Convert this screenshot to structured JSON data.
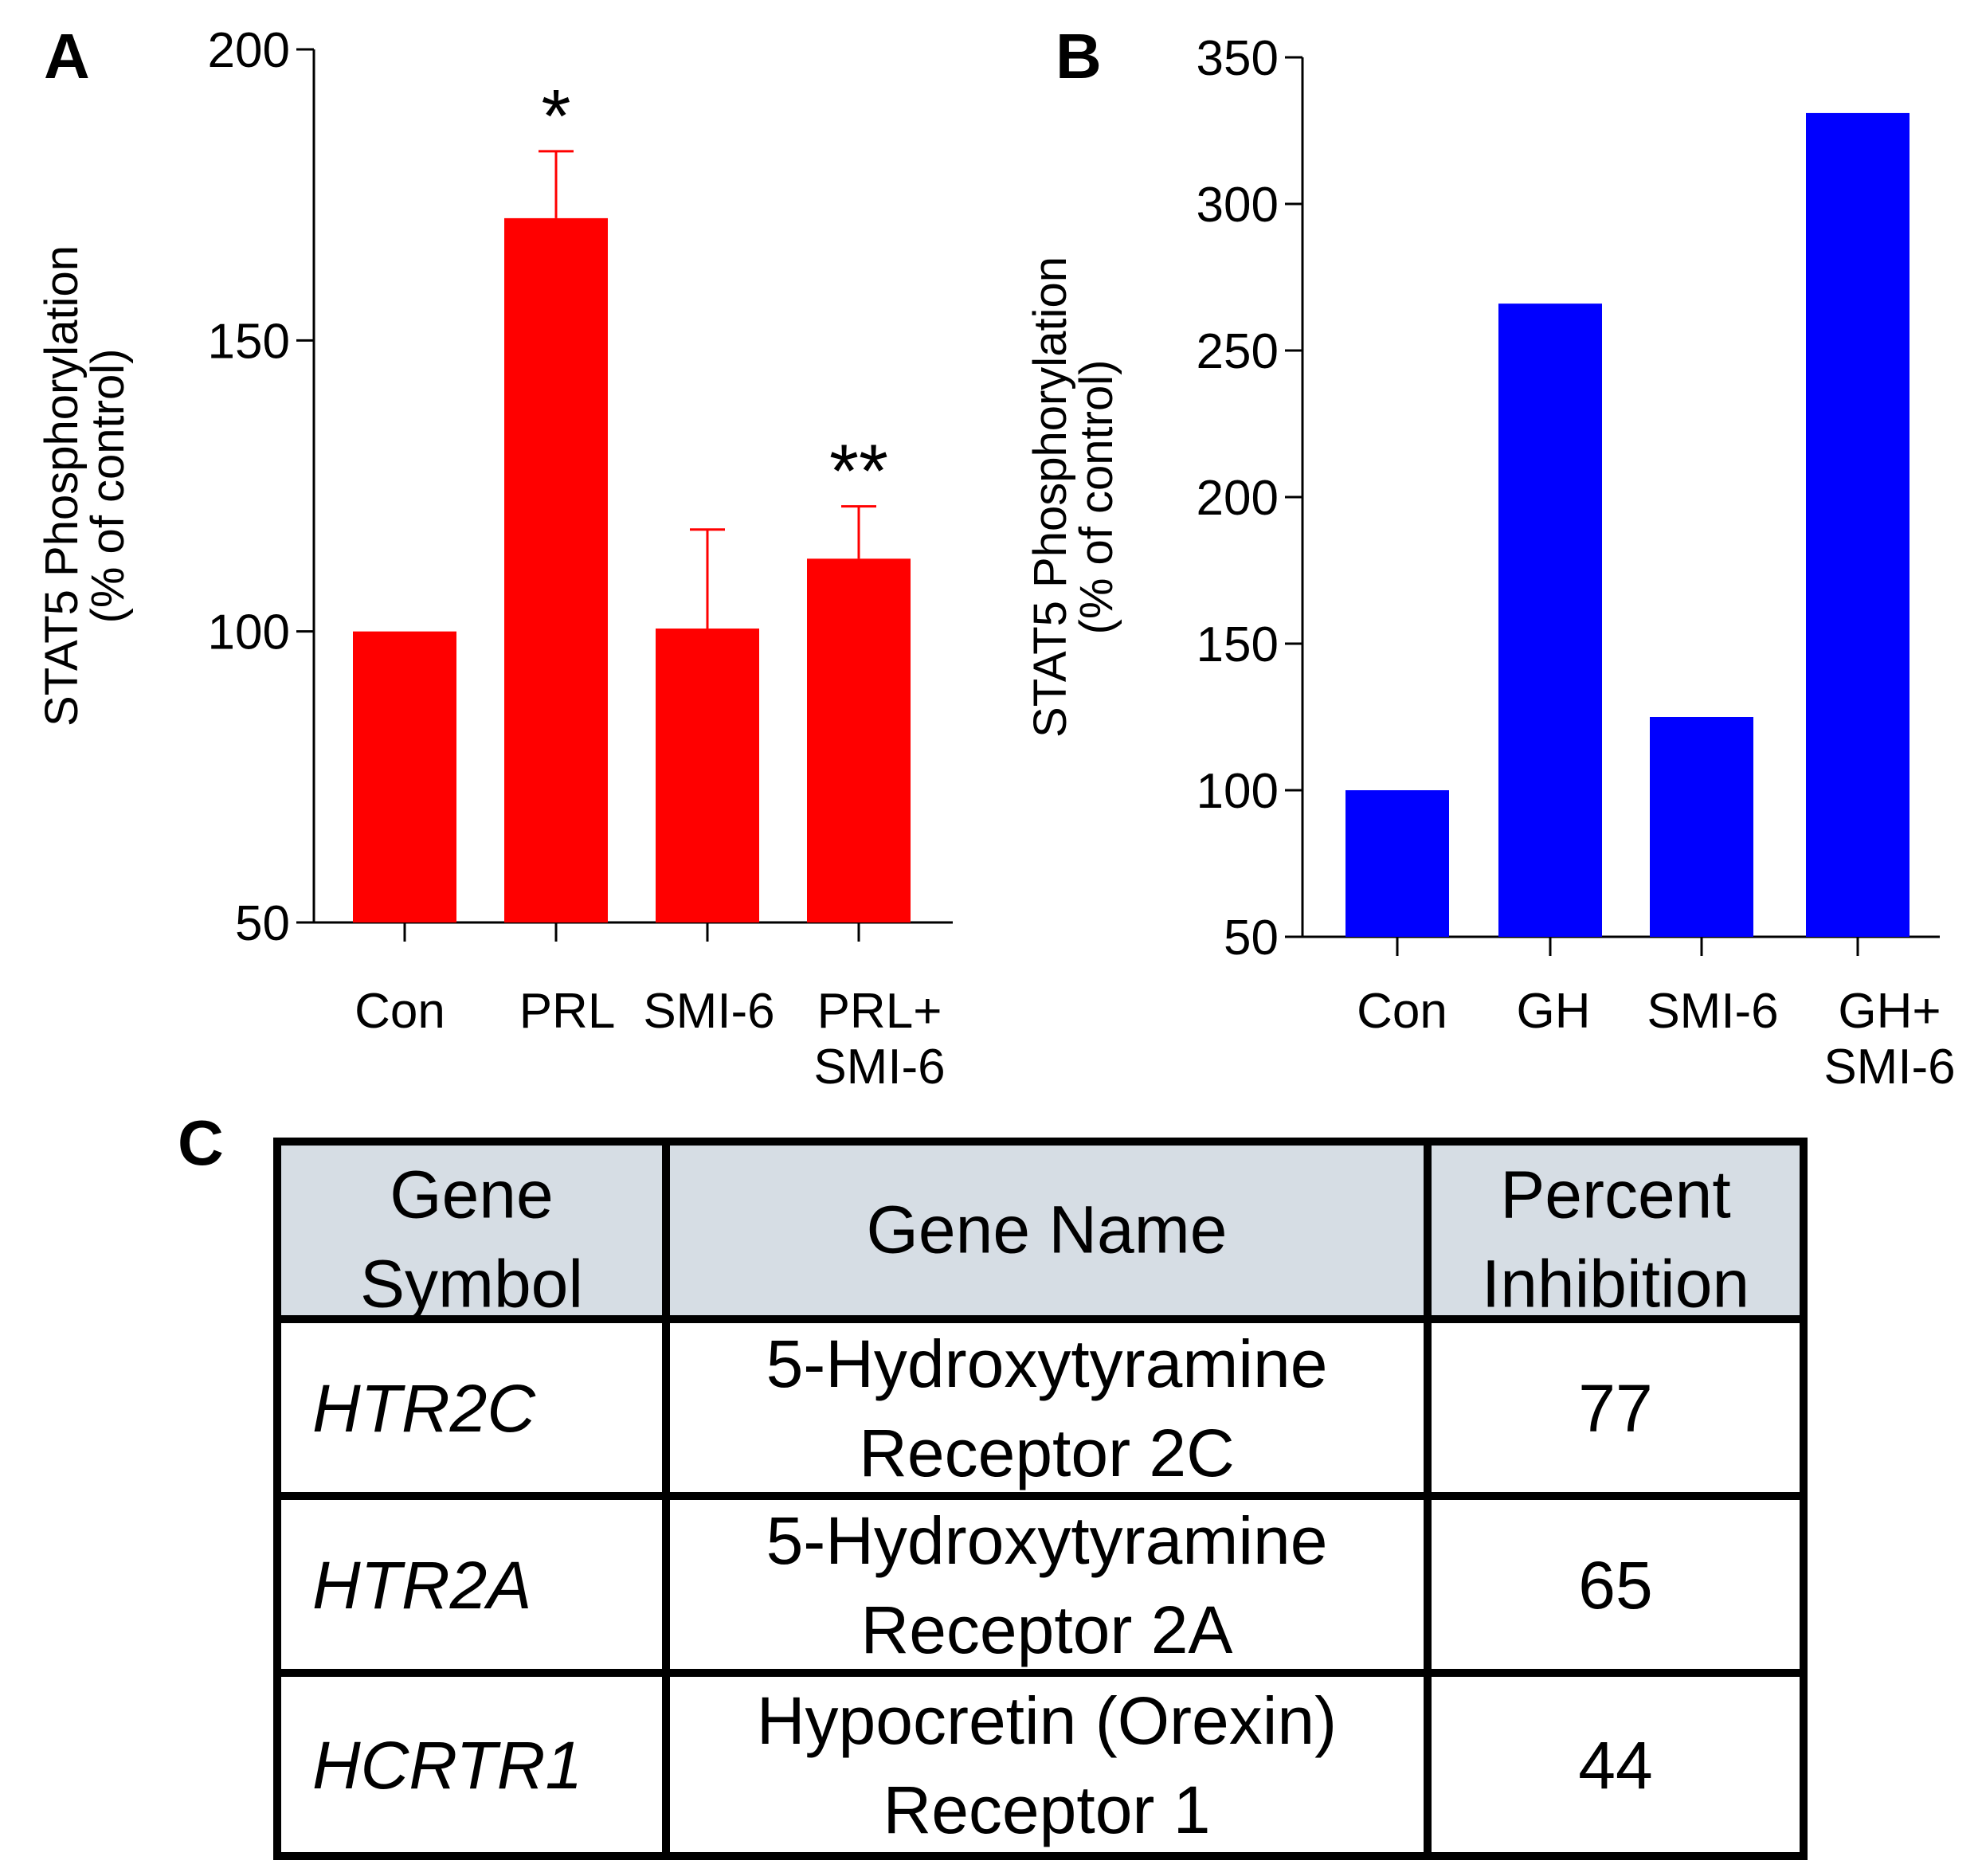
{
  "chart_data": [
    {
      "panel": "A",
      "type": "bar",
      "categories": [
        [
          "Con"
        ],
        [
          "PRL"
        ],
        [
          "SMI-6"
        ],
        [
          "PRL+",
          "SMI-6"
        ]
      ],
      "values": [
        100,
        171,
        100.5,
        112.5
      ],
      "error": [
        0,
        11.5,
        17,
        9
      ],
      "significance": [
        "",
        "*",
        "",
        "**"
      ],
      "ylabel": [
        "STAT5 Phosphorylation",
        "(% of control)"
      ],
      "ylim": [
        50,
        200
      ],
      "yticks": [
        50,
        100,
        150,
        200
      ],
      "color": "#ff0000"
    },
    {
      "panel": "B",
      "type": "bar",
      "categories": [
        [
          "Con"
        ],
        [
          "GH"
        ],
        [
          "SMI-6"
        ],
        [
          "GH+",
          "SMI-6"
        ]
      ],
      "values": [
        100,
        266,
        125,
        331
      ],
      "ylabel": [
        "STAT5 Phosphorylation",
        "(% of control)"
      ],
      "ylim": [
        50,
        350
      ],
      "yticks": [
        50,
        100,
        150,
        200,
        250,
        300,
        350
      ],
      "color": "#0000ff"
    },
    {
      "panel": "C",
      "type": "table",
      "headers": [
        [
          "Gene",
          "Symbol"
        ],
        [
          "Gene Name"
        ],
        [
          "Percent",
          "Inhibition"
        ]
      ],
      "rows": [
        {
          "symbol": "HTR2C",
          "name": [
            "5-Hydroxytyramine",
            "Receptor 2C"
          ],
          "inhibition": "77"
        },
        {
          "symbol": "HTR2A",
          "name": [
            "5-Hydroxytyramine",
            "Receptor 2A"
          ],
          "inhibition": "65"
        },
        {
          "symbol": "HCRTR1",
          "name": [
            "Hypocretin (Orexin)",
            "Receptor 1"
          ],
          "inhibition": "44"
        }
      ],
      "header_color": "#d6dde4"
    }
  ]
}
